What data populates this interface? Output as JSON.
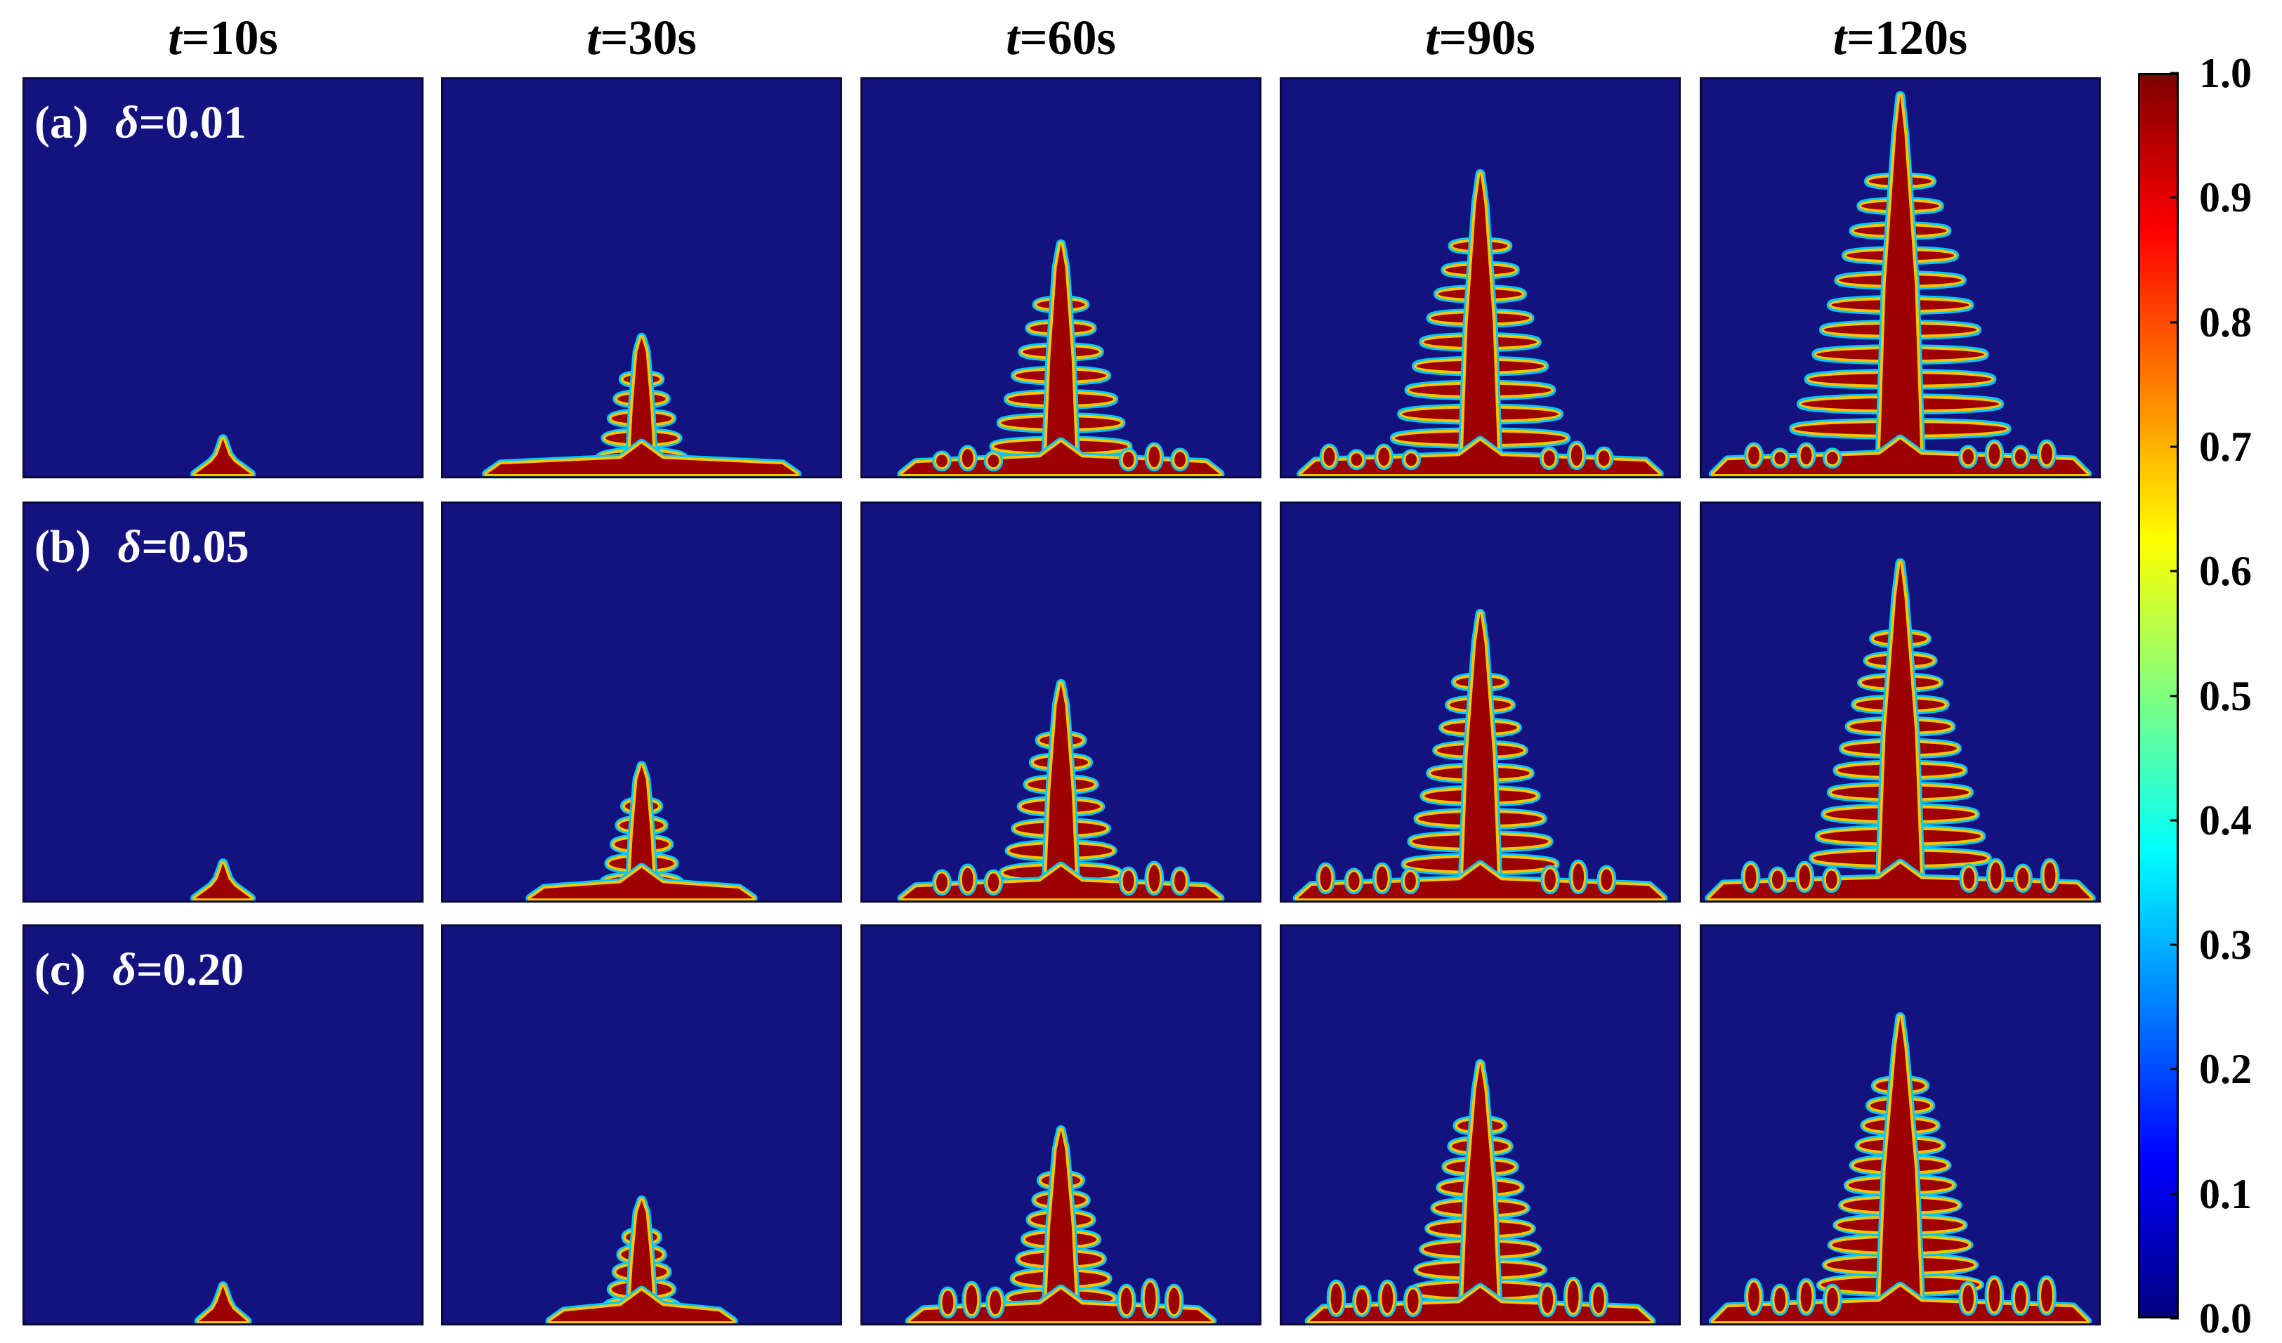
{
  "columns": [
    {
      "prefix": "t",
      "rest": "=10s",
      "t_seconds": 10
    },
    {
      "prefix": "t",
      "rest": "=30s",
      "t_seconds": 30
    },
    {
      "prefix": "t",
      "rest": "=60s",
      "t_seconds": 60
    },
    {
      "prefix": "t",
      "rest": "=90s",
      "t_seconds": 90
    },
    {
      "prefix": "t",
      "rest": "=120s",
      "t_seconds": 120
    }
  ],
  "rows": [
    {
      "tag": "(a)",
      "symbol": "δ",
      "rest": "=0.01",
      "delta": 0.01
    },
    {
      "tag": "(b)",
      "symbol": "δ",
      "rest": "=0.05",
      "delta": 0.05
    },
    {
      "tag": "(c)",
      "symbol": "δ",
      "rest": "=0.20",
      "delta": 0.2
    }
  ],
  "colorbar": {
    "ticks": [
      "1.0",
      "0.9",
      "0.8",
      "0.7",
      "0.6",
      "0.5",
      "0.4",
      "0.3",
      "0.2",
      "0.1",
      "0.0"
    ],
    "min": 0.0,
    "max": 1.0,
    "colormap": "jet",
    "stops": [
      "#00007f",
      "#0000ff",
      "#007fff",
      "#00ffff",
      "#7fff7f",
      "#ffff00",
      "#ff7f00",
      "#ff0000",
      "#7f0000"
    ]
  },
  "colors": {
    "background_field": "#13127e",
    "solid": "#9c0000",
    "edge_mid": "#f7c500",
    "edge_outer": "#00c8ff"
  },
  "growth": {
    "tip_height": [
      [
        0.09,
        0.35,
        0.59,
        0.77,
        0.97
      ],
      [
        0.09,
        0.34,
        0.55,
        0.73,
        0.86
      ],
      [
        0.09,
        0.31,
        0.49,
        0.66,
        0.78
      ]
    ],
    "base_halfwidth": [
      [
        0.07,
        0.39,
        0.4,
        0.45,
        0.47
      ],
      [
        0.07,
        0.28,
        0.4,
        0.46,
        0.48
      ],
      [
        0.06,
        0.23,
        0.38,
        0.43,
        0.47
      ]
    ]
  }
}
